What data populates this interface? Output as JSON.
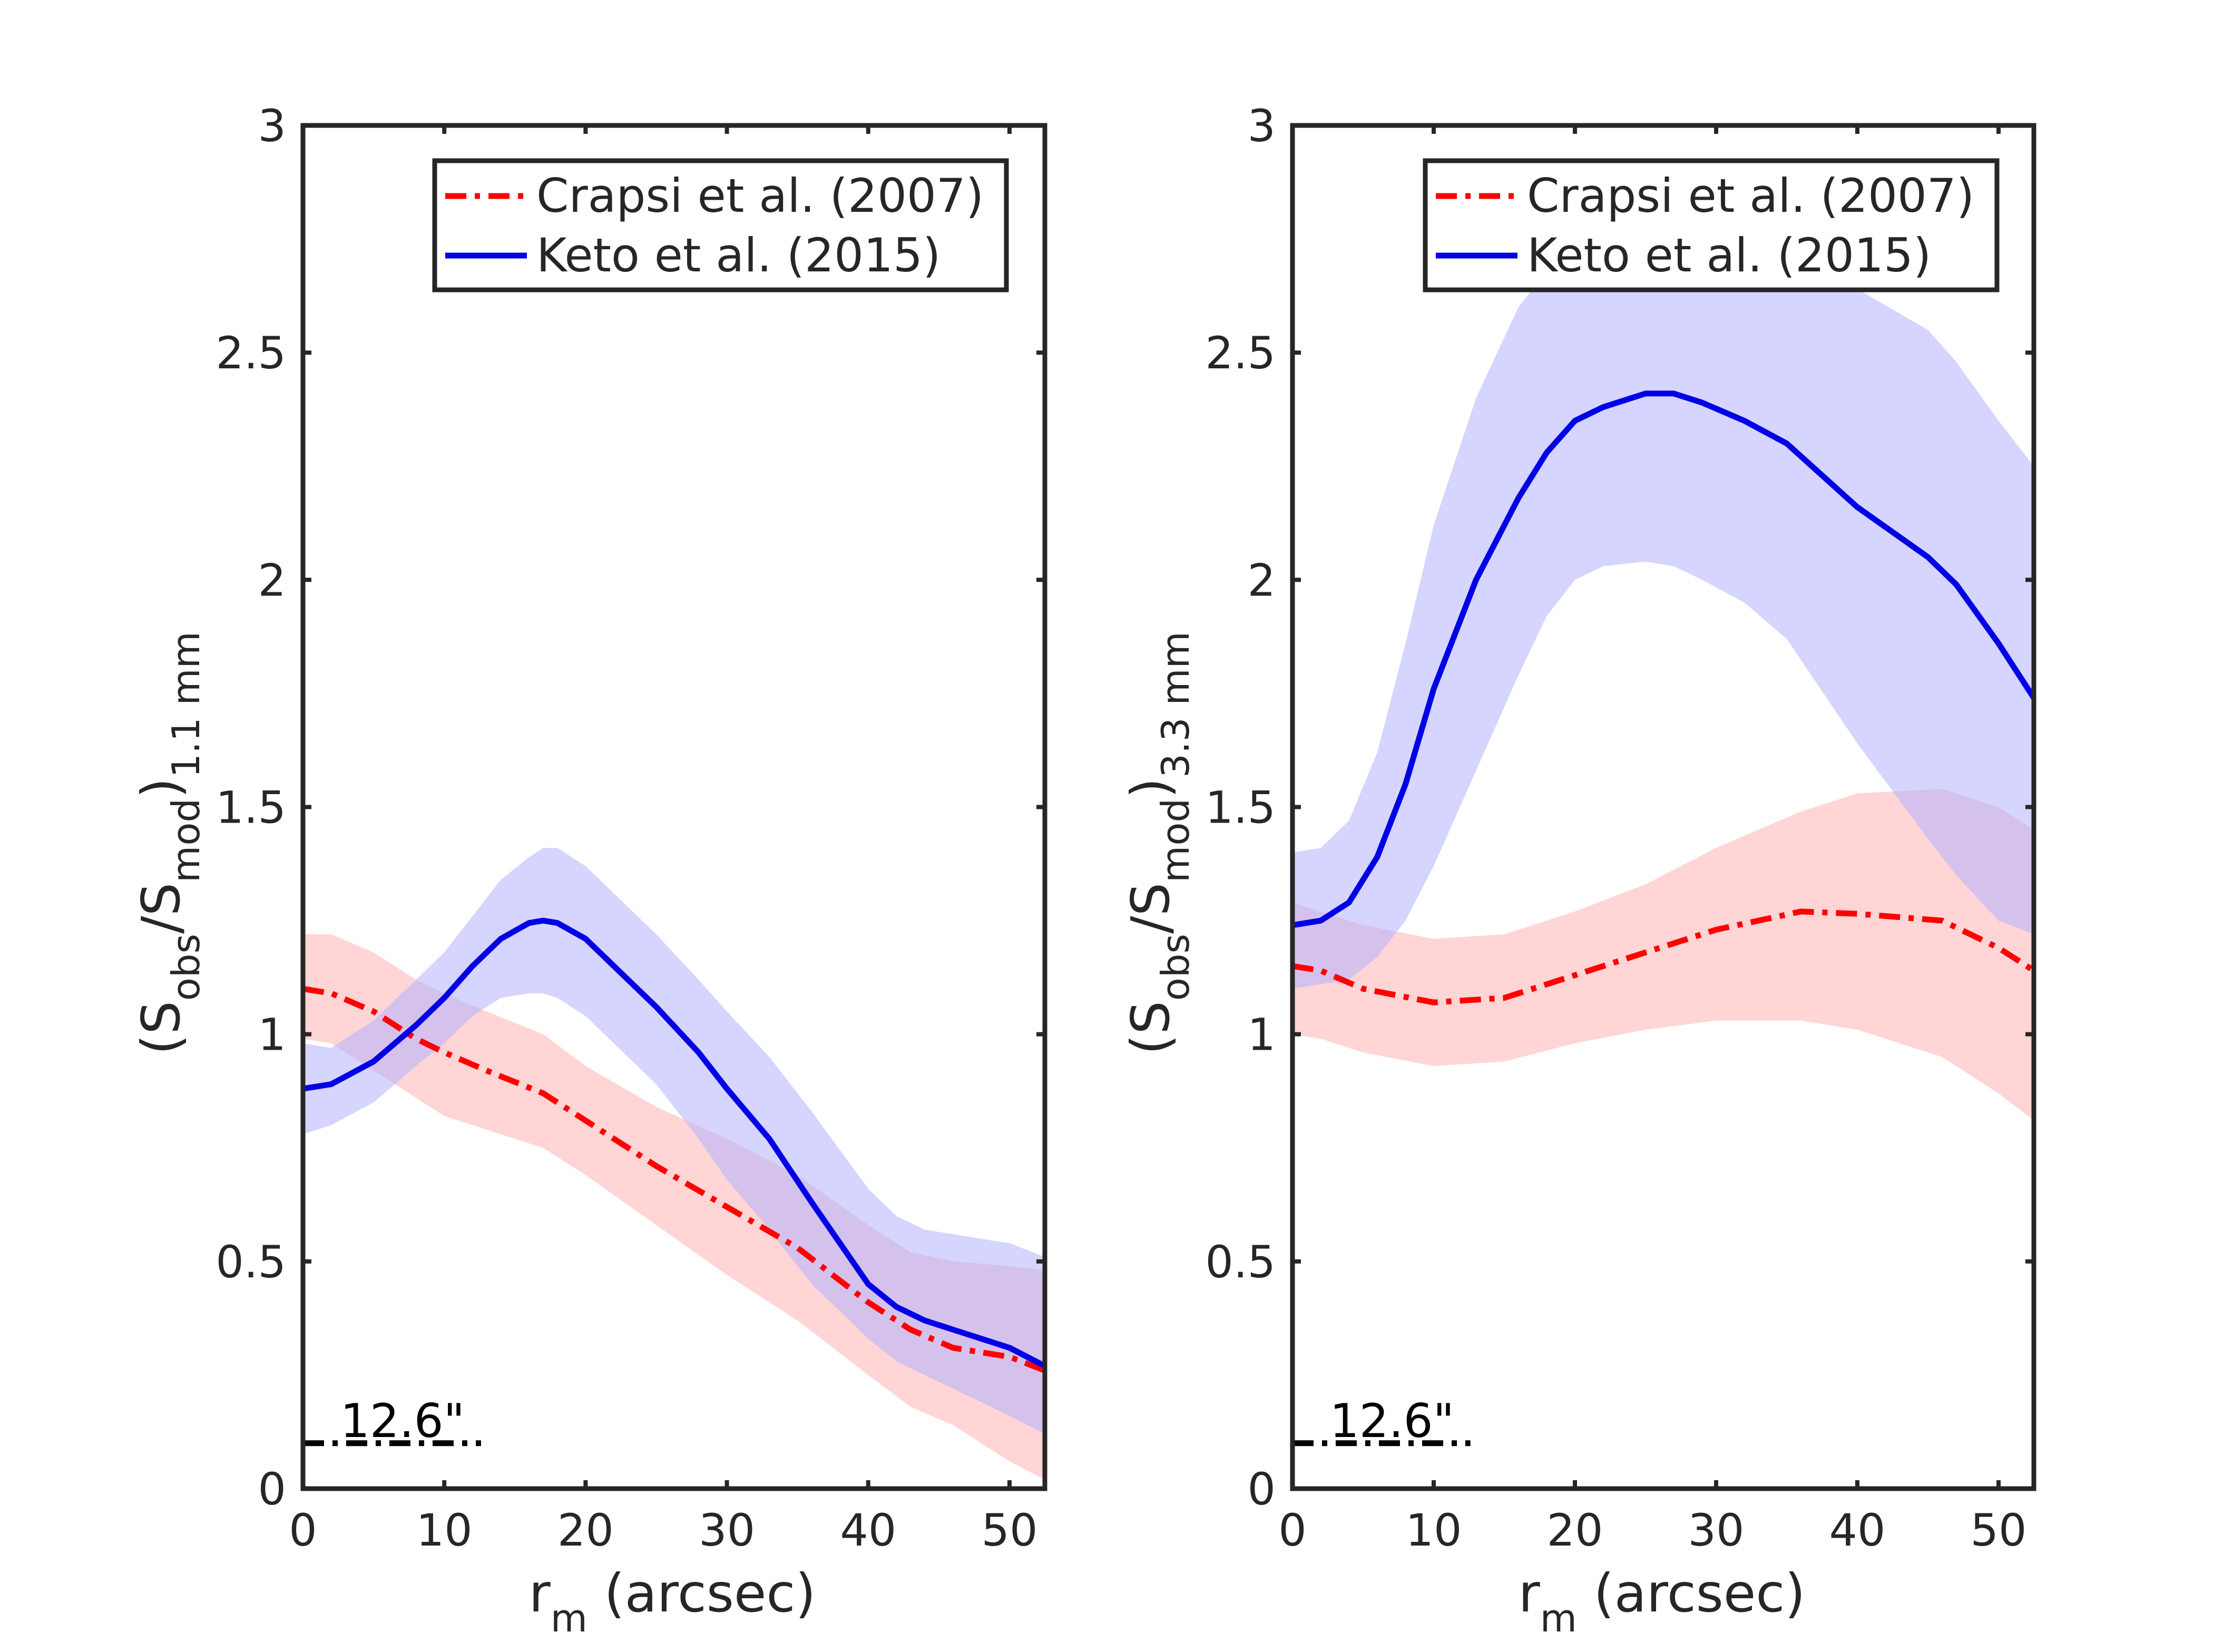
{
  "figure": {
    "panels": 2
  },
  "chart_data": [
    {
      "type": "line",
      "panel": "left",
      "xlabel_main": "r",
      "xlabel_sub": "m",
      "xlabel_rest": " (arcsec)",
      "ylabel_open": "(S",
      "ylabel_sub1": "obs",
      "ylabel_mid": "/S",
      "ylabel_sub2": "mod",
      "ylabel_close": ")",
      "ylabel_sub3": "1.1 mm",
      "xlim": [
        0,
        52.5
      ],
      "ylim": [
        0,
        3
      ],
      "xticks": [
        0,
        10,
        20,
        30,
        40,
        50
      ],
      "yticks": [
        0,
        0.5,
        1,
        1.5,
        2,
        2.5,
        3
      ],
      "ytick_labels": [
        "0",
        "0.5",
        "1",
        "1.5",
        "2",
        "2.5",
        "3"
      ],
      "legend_position": "top-right",
      "beam": {
        "label": "12.6\"",
        "x0": 0,
        "x1": 12.6,
        "y": 0.1
      },
      "series": [
        {
          "name": "Crapsi et al. (2007)",
          "color": "#ff0000",
          "band_color": "#ffb3b3",
          "style": "dashdot",
          "x": [
            0,
            2,
            5,
            8,
            10,
            13,
            17,
            20,
            25,
            30,
            35,
            40,
            43,
            46,
            50,
            52.5
          ],
          "y": [
            1.1,
            1.09,
            1.05,
            0.99,
            0.96,
            0.92,
            0.87,
            0.81,
            0.71,
            0.62,
            0.53,
            0.41,
            0.35,
            0.31,
            0.29,
            0.26
          ],
          "lower": [
            0.99,
            0.98,
            0.92,
            0.86,
            0.82,
            0.79,
            0.75,
            0.69,
            0.58,
            0.47,
            0.37,
            0.25,
            0.18,
            0.14,
            0.06,
            0.02
          ],
          "upper": [
            1.22,
            1.22,
            1.18,
            1.12,
            1.09,
            1.05,
            1.0,
            0.93,
            0.84,
            0.77,
            0.69,
            0.58,
            0.52,
            0.5,
            0.49,
            0.48
          ]
        },
        {
          "name": "Keto et al. (2015)",
          "color": "#0000e6",
          "band_color": "#b3b3ff",
          "style": "solid",
          "x": [
            0,
            2,
            5,
            8,
            10,
            12,
            14,
            16,
            17,
            18,
            20,
            25,
            28,
            30,
            33,
            36,
            40,
            42,
            44,
            46,
            50,
            52.5
          ],
          "y": [
            0.88,
            0.89,
            0.94,
            1.02,
            1.08,
            1.15,
            1.21,
            1.245,
            1.25,
            1.245,
            1.21,
            1.06,
            0.96,
            0.88,
            0.77,
            0.63,
            0.45,
            0.4,
            0.37,
            0.35,
            0.31,
            0.27
          ],
          "lower": [
            0.78,
            0.8,
            0.85,
            0.93,
            0.98,
            1.04,
            1.08,
            1.09,
            1.09,
            1.08,
            1.04,
            0.89,
            0.77,
            0.68,
            0.57,
            0.45,
            0.33,
            0.28,
            0.25,
            0.22,
            0.16,
            0.12
          ],
          "upper": [
            0.98,
            0.97,
            1.03,
            1.12,
            1.18,
            1.26,
            1.34,
            1.39,
            1.41,
            1.41,
            1.37,
            1.22,
            1.12,
            1.05,
            0.95,
            0.83,
            0.66,
            0.6,
            0.57,
            0.56,
            0.54,
            0.51
          ]
        }
      ]
    },
    {
      "type": "line",
      "panel": "right",
      "xlabel_main": "r",
      "xlabel_sub": "m",
      "xlabel_rest": " (arcsec)",
      "ylabel_open": "(S",
      "ylabel_sub1": "obs",
      "ylabel_mid": "/S",
      "ylabel_sub2": "mod",
      "ylabel_close": ")",
      "ylabel_sub3": "3.3 mm",
      "xlim": [
        0,
        52.5
      ],
      "ylim": [
        0,
        3
      ],
      "xticks": [
        0,
        10,
        20,
        30,
        40,
        50
      ],
      "yticks": [
        0,
        0.5,
        1,
        1.5,
        2,
        2.5,
        3
      ],
      "ytick_labels": [
        "0",
        "0.5",
        "1",
        "1.5",
        "2",
        "2.5",
        "3"
      ],
      "legend_position": "top-right",
      "beam": {
        "label": "12.6\"",
        "x0": 0,
        "x1": 12.6,
        "y": 0.1
      },
      "series": [
        {
          "name": "Crapsi et al. (2007)",
          "color": "#ff0000",
          "band_color": "#ffb3b3",
          "style": "dashdot",
          "x": [
            0,
            2,
            5,
            10,
            15,
            20,
            25,
            30,
            36,
            40,
            46,
            50,
            52.5
          ],
          "y": [
            1.15,
            1.14,
            1.1,
            1.07,
            1.08,
            1.13,
            1.18,
            1.23,
            1.27,
            1.265,
            1.25,
            1.19,
            1.14
          ],
          "lower": [
            1.0,
            0.99,
            0.96,
            0.93,
            0.94,
            0.98,
            1.01,
            1.03,
            1.03,
            1.01,
            0.95,
            0.87,
            0.81
          ],
          "upper": [
            1.29,
            1.27,
            1.24,
            1.21,
            1.22,
            1.27,
            1.33,
            1.41,
            1.49,
            1.53,
            1.54,
            1.5,
            1.45
          ]
        },
        {
          "name": "Keto et al. (2015)",
          "color": "#0000e6",
          "band_color": "#b3b3ff",
          "style": "solid",
          "x": [
            0,
            2,
            4,
            6,
            8,
            10,
            13,
            16,
            18,
            20,
            22,
            25,
            27,
            29,
            32,
            35,
            40,
            45,
            47,
            50,
            52.5
          ],
          "y": [
            1.24,
            1.25,
            1.29,
            1.39,
            1.55,
            1.76,
            2.0,
            2.18,
            2.28,
            2.35,
            2.38,
            2.41,
            2.41,
            2.39,
            2.35,
            2.3,
            2.16,
            2.05,
            1.99,
            1.86,
            1.74
          ],
          "lower": [
            1.1,
            1.11,
            1.12,
            1.17,
            1.25,
            1.37,
            1.58,
            1.79,
            1.92,
            2.0,
            2.03,
            2.04,
            2.03,
            2.0,
            1.95,
            1.87,
            1.64,
            1.43,
            1.35,
            1.25,
            1.22
          ],
          "upper": [
            1.4,
            1.41,
            1.47,
            1.62,
            1.86,
            2.12,
            2.4,
            2.6,
            2.68,
            2.72,
            2.73,
            2.73,
            2.72,
            2.7,
            2.7,
            2.7,
            2.64,
            2.55,
            2.48,
            2.35,
            2.25
          ]
        }
      ]
    }
  ]
}
